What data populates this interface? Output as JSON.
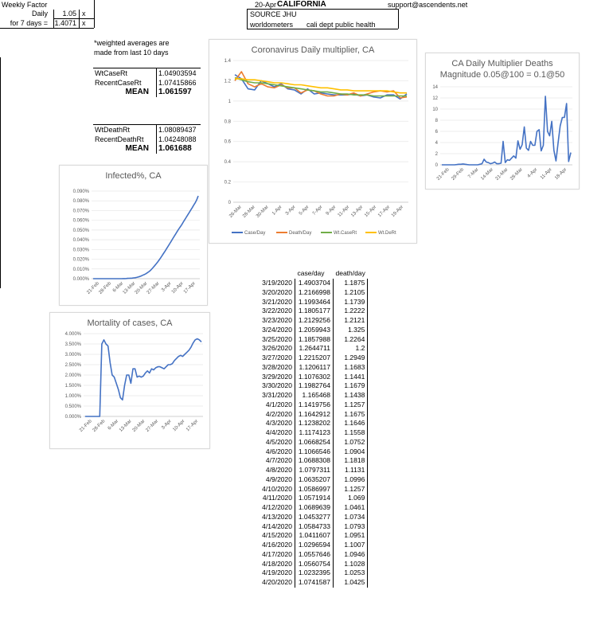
{
  "header": {
    "weekly_factor_label": "Weekly Factor",
    "daily_label": "Daily",
    "daily_value": "1.05",
    "daily_unit": "x",
    "seven_days_label": "for 7 days =",
    "seven_days_value": "1.4071",
    "seven_days_unit": "x",
    "date": "20-Apr",
    "state": "CALIFORNIA",
    "email": "support@ascendents.net",
    "source": "SOURCE JHU",
    "worldometers": "worldometers",
    "cali": "cali dept public health"
  },
  "averages": {
    "note1": "*weighted averages are",
    "note2": "made from last 10 days",
    "wt_case_label": "WtCaseRt",
    "wt_case_value": "1.04903594",
    "recent_case_label": "RecentCaseRt",
    "recent_case_value": "1.07415866",
    "mean_label": "MEAN",
    "case_mean_value": "1.061597",
    "wt_death_label": "WtDeathRt",
    "wt_death_value": "1.08089437",
    "recent_death_label": "RecentDeathRt",
    "recent_death_value": "1.04248088",
    "death_mean_value": "1.061688"
  },
  "table": {
    "header_case": "case/day",
    "header_death": "death/day",
    "rows": [
      [
        "3/19/2020",
        "1.4903704",
        "1.1875"
      ],
      [
        "3/20/2020",
        "1.2166998",
        "1.2105"
      ],
      [
        "3/21/2020",
        "1.1993464",
        "1.1739"
      ],
      [
        "3/22/2020",
        "1.1805177",
        "1.2222"
      ],
      [
        "3/23/2020",
        "1.2129256",
        "1.2121"
      ],
      [
        "3/24/2020",
        "1.2059943",
        "1.325"
      ],
      [
        "3/25/2020",
        "1.1857988",
        "1.2264"
      ],
      [
        "3/26/2020",
        "1.2644711",
        "1.2"
      ],
      [
        "3/27/2020",
        "1.2215207",
        "1.2949"
      ],
      [
        "3/28/2020",
        "1.1206117",
        "1.1683"
      ],
      [
        "3/29/2020",
        "1.1076302",
        "1.1441"
      ],
      [
        "3/30/2020",
        "1.1982764",
        "1.1679"
      ],
      [
        "3/31/2020",
        "1.165468",
        "1.1438"
      ],
      [
        "4/1/2020",
        "1.1419756",
        "1.1257"
      ],
      [
        "4/2/2020",
        "1.1642912",
        "1.1675"
      ],
      [
        "4/3/2020",
        "1.1238202",
        "1.1646"
      ],
      [
        "4/4/2020",
        "1.1174123",
        "1.1558"
      ],
      [
        "4/5/2020",
        "1.0668254",
        "1.0752"
      ],
      [
        "4/6/2020",
        "1.1066546",
        "1.0904"
      ],
      [
        "4/7/2020",
        "1.0688308",
        "1.1818"
      ],
      [
        "4/8/2020",
        "1.0797311",
        "1.1131"
      ],
      [
        "4/9/2020",
        "1.0635207",
        "1.0996"
      ],
      [
        "4/10/2020",
        "1.0586997",
        "1.1257"
      ],
      [
        "4/11/2020",
        "1.0571914",
        "1.069"
      ],
      [
        "4/12/2020",
        "1.0689639",
        "1.0461"
      ],
      [
        "4/13/2020",
        "1.0453277",
        "1.0734"
      ],
      [
        "4/14/2020",
        "1.0584733",
        "1.0793"
      ],
      [
        "4/15/2020",
        "1.0411607",
        "1.0951"
      ],
      [
        "4/16/2020",
        "1.0296594",
        "1.1007"
      ],
      [
        "4/17/2020",
        "1.0557646",
        "1.0946"
      ],
      [
        "4/18/2020",
        "1.0560754",
        "1.1028"
      ],
      [
        "4/19/2020",
        "1.0232395",
        "1.0253"
      ],
      [
        "4/20/2020",
        "1.0741587",
        "1.0425"
      ]
    ]
  },
  "chart_data": [
    {
      "id": "multiplier",
      "type": "line",
      "title": "Coronavirus Daily multiplier, CA",
      "ylim": [
        0,
        1.4
      ],
      "yticks": [
        "0",
        "0.2",
        "0.4",
        "0.6",
        "0.8",
        "1",
        "1.2",
        "1.4"
      ],
      "xticks": [
        "26-Mar",
        "28-Mar",
        "30-Mar",
        "1-Apr",
        "3-Apr",
        "5-Apr",
        "7-Apr",
        "9-Apr",
        "11-Apr",
        "13-Apr",
        "15-Apr",
        "17-Apr",
        "19-Apr"
      ],
      "legend": "bottom",
      "series": [
        {
          "name": "Case/Day",
          "color": "#4472c4",
          "values": [
            1.26,
            1.22,
            1.12,
            1.11,
            1.2,
            1.17,
            1.14,
            1.17,
            1.12,
            1.11,
            1.07,
            1.12,
            1.07,
            1.08,
            1.07,
            1.06,
            1.06,
            1.06,
            1.07,
            1.05,
            1.06,
            1.04,
            1.03,
            1.06,
            1.06,
            1.02,
            1.07
          ]
        },
        {
          "name": "Death/Day",
          "color": "#ed7d31",
          "values": [
            1.2,
            1.29,
            1.17,
            1.14,
            1.17,
            1.14,
            1.13,
            1.16,
            1.13,
            1.13,
            1.08,
            1.11,
            1.1,
            1.07,
            1.05,
            1.05,
            1.07,
            1.06,
            1.08,
            1.05,
            1.07,
            1.09,
            1.1,
            1.09,
            1.1,
            1.03,
            1.04
          ]
        },
        {
          "name": "Wt.CaseRt",
          "color": "#70ad47",
          "values": [
            1.23,
            1.21,
            1.19,
            1.18,
            1.18,
            1.17,
            1.16,
            1.15,
            1.14,
            1.13,
            1.12,
            1.11,
            1.1,
            1.09,
            1.09,
            1.08,
            1.07,
            1.07,
            1.06,
            1.06,
            1.06,
            1.05,
            1.05,
            1.05,
            1.05,
            1.05,
            1.05
          ]
        },
        {
          "name": "Wt.DeRt",
          "color": "#ffc000",
          "values": [
            1.22,
            1.22,
            1.21,
            1.21,
            1.2,
            1.19,
            1.18,
            1.18,
            1.17,
            1.16,
            1.16,
            1.15,
            1.14,
            1.13,
            1.13,
            1.12,
            1.11,
            1.11,
            1.1,
            1.1,
            1.1,
            1.1,
            1.1,
            1.1,
            1.09,
            1.08,
            1.08
          ]
        }
      ]
    },
    {
      "id": "deaths",
      "type": "line",
      "title": "CA Daily Multiplier Deaths",
      "subtitle": "Magnitude 0.05@100 = 0.1@50",
      "ylim": [
        0,
        14
      ],
      "yticks": [
        "0",
        "2",
        "4",
        "6",
        "8",
        "10",
        "12",
        "14"
      ],
      "xticks": [
        "21-Feb",
        "29-Feb",
        "7-Mar",
        "14-Mar",
        "21-Mar",
        "28-Mar",
        "4-Apr",
        "11-Apr",
        "18-Apr"
      ],
      "series": [
        {
          "name": "Deaths",
          "color": "#4472c4",
          "values": [
            0,
            0,
            0,
            0,
            0,
            0,
            0,
            0.05,
            0.1,
            0.1,
            0.15,
            0.1,
            0.05,
            0,
            0,
            0,
            0,
            0,
            0.1,
            0.2,
            1.0,
            0.5,
            0.4,
            0.2,
            0.3,
            0.5,
            0.2,
            0.2,
            0.3,
            4.2,
            0.4,
            0.9,
            0.8,
            1.2,
            1.6,
            1.2,
            4.3,
            2.8,
            3.6,
            6.8,
            3.0,
            2.6,
            4.2,
            3.5,
            3.5,
            6.0,
            6.3,
            2.5,
            3.5,
            12.3,
            6.0,
            5.2,
            7.8,
            2.6,
            0.7,
            4.0,
            7.0,
            8.5,
            8.5,
            11.0,
            0.6,
            2.2
          ]
        }
      ]
    },
    {
      "id": "infected",
      "type": "line",
      "title": "Infected%, CA",
      "ylim": [
        0,
        0.09
      ],
      "yticks": [
        "0.000%",
        "0.010%",
        "0.020%",
        "0.030%",
        "0.040%",
        "0.050%",
        "0.060%",
        "0.070%",
        "0.080%",
        "0.090%"
      ],
      "xticks": [
        "21-Feb",
        "28-Feb",
        "6-Mar",
        "13-Mar",
        "20-Mar",
        "27-Mar",
        "3-Apr",
        "10-Apr",
        "17-Apr"
      ],
      "series": [
        {
          "name": "Infected",
          "color": "#4472c4",
          "values": [
            0,
            0,
            0,
            0,
            0,
            0,
            0,
            0,
            0,
            0,
            0,
            0,
            0,
            0,
            0,
            0,
            0,
            0,
            0,
            0,
            0.0001,
            0.0001,
            0.0002,
            0.0003,
            0.0004,
            0.0005,
            0.0006,
            0.0008,
            0.001,
            0.0013,
            0.0017,
            0.0022,
            0.0028,
            0.0035,
            0.0042,
            0.005,
            0.006,
            0.007,
            0.0083,
            0.0098,
            0.0115,
            0.0133,
            0.0152,
            0.0172,
            0.0193,
            0.0215,
            0.0238,
            0.0262,
            0.0285,
            0.031,
            0.0335,
            0.036,
            0.0385,
            0.041,
            0.0435,
            0.046,
            0.0485,
            0.051,
            0.0532,
            0.0555,
            0.058,
            0.0605,
            0.063,
            0.0655,
            0.068,
            0.0705,
            0.073,
            0.0755,
            0.078,
            0.081,
            0.085
          ]
        }
      ]
    },
    {
      "id": "mortality",
      "type": "line",
      "title": "Mortality of cases, CA",
      "ylim": [
        0,
        4.0
      ],
      "yticks": [
        "0.000%",
        "0.500%",
        "1.000%",
        "1.500%",
        "2.000%",
        "2.500%",
        "3.000%",
        "3.500%",
        "4.000%"
      ],
      "xticks": [
        "21-Feb",
        "28-Feb",
        "6-Mar",
        "13-Mar",
        "20-Mar",
        "27-Mar",
        "3-Apr",
        "10-Apr",
        "17-Apr"
      ],
      "series": [
        {
          "name": "Mortality",
          "color": "#4472c4",
          "values": [
            0,
            0,
            0,
            0,
            0,
            0,
            0,
            0,
            3.5,
            3.7,
            3.5,
            3.4,
            2.6,
            2.0,
            1.9,
            1.6,
            1.3,
            0.9,
            0.8,
            1.5,
            2.0,
            2.0,
            1.6,
            2.3,
            2.3,
            1.9,
            1.95,
            1.9,
            1.95,
            2.1,
            2.2,
            2.1,
            2.3,
            2.25,
            2.35,
            2.4,
            2.4,
            2.35,
            2.3,
            2.4,
            2.5,
            2.5,
            2.55,
            2.7,
            2.8,
            2.9,
            2.95,
            2.9,
            3.0,
            3.1,
            3.2,
            3.35,
            3.55,
            3.7,
            3.75,
            3.7,
            3.6
          ]
        }
      ]
    }
  ]
}
